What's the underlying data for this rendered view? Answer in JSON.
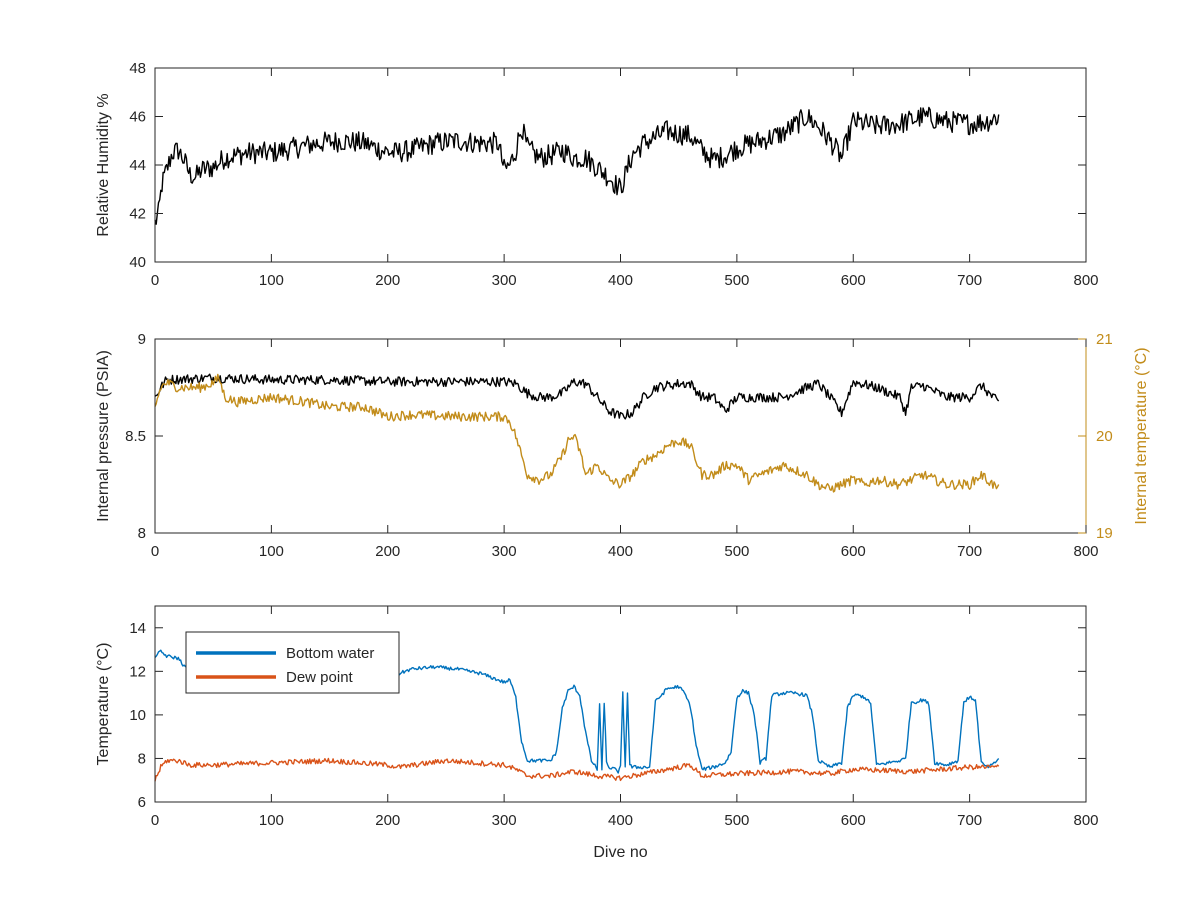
{
  "chart_data": [
    {
      "type": "line",
      "title": "",
      "xlabel": "",
      "ylabel": "Relative Humidity %",
      "xlim": [
        0,
        800
      ],
      "ylim": [
        40,
        48
      ],
      "xticks": [
        0,
        100,
        200,
        300,
        400,
        500,
        600,
        700,
        800
      ],
      "yticks": [
        40,
        42,
        44,
        46,
        48
      ],
      "series": [
        {
          "color": "#000000",
          "axis": "left",
          "noise": 0.45,
          "x": [
            0,
            3,
            6,
            10,
            15,
            20,
            25,
            30,
            35,
            40,
            50,
            60,
            70,
            80,
            90,
            100,
            120,
            140,
            160,
            180,
            195,
            205,
            220,
            240,
            260,
            280,
            295,
            300,
            305,
            310,
            315,
            320,
            330,
            340,
            350,
            360,
            370,
            380,
            390,
            400,
            410,
            420,
            440,
            460,
            470,
            480,
            490,
            500,
            520,
            540,
            560,
            570,
            580,
            590,
            600,
            620,
            640,
            660,
            680,
            700,
            715,
            725
          ],
          "y": [
            41.6,
            42.0,
            43.2,
            43.8,
            44.5,
            44.6,
            44.2,
            43.6,
            43.5,
            43.8,
            43.9,
            44.3,
            44.4,
            44.5,
            44.5,
            44.5,
            44.7,
            44.9,
            45.0,
            44.9,
            44.6,
            44.5,
            44.6,
            44.9,
            45.0,
            44.9,
            44.9,
            43.8,
            44.0,
            44.6,
            45.6,
            44.7,
            44.3,
            44.4,
            44.6,
            44.3,
            44.3,
            43.9,
            43.5,
            43.0,
            44.4,
            44.9,
            45.4,
            45.2,
            44.6,
            44.2,
            44.4,
            44.7,
            45.0,
            45.3,
            46.0,
            45.6,
            45.0,
            44.3,
            45.8,
            45.6,
            45.7,
            46.0,
            45.8,
            45.7,
            45.8,
            46.0
          ]
        }
      ]
    },
    {
      "type": "line",
      "title": "",
      "xlabel": "",
      "ylabel": "Internal pressure (PSIA)",
      "ylabel_right": "Internal temperature (°C)",
      "xlim": [
        0,
        800
      ],
      "ylim": [
        8,
        9
      ],
      "ylim_right": [
        19,
        21
      ],
      "xticks": [
        0,
        100,
        200,
        300,
        400,
        500,
        600,
        700,
        800
      ],
      "yticks": [
        8,
        8.5,
        9
      ],
      "yticks_right": [
        19,
        20,
        21
      ],
      "series": [
        {
          "color": "#000000",
          "axis": "left",
          "noise": 0.025,
          "x": [
            0,
            5,
            10,
            50,
            100,
            150,
            200,
            250,
            290,
            300,
            310,
            320,
            330,
            340,
            350,
            360,
            370,
            380,
            390,
            400,
            410,
            420,
            430,
            440,
            450,
            460,
            470,
            480,
            490,
            500,
            520,
            540,
            560,
            570,
            580,
            590,
            600,
            620,
            640,
            645,
            650,
            660,
            680,
            700,
            710,
            720,
            725
          ],
          "y": [
            8.7,
            8.75,
            8.79,
            8.8,
            8.79,
            8.79,
            8.78,
            8.78,
            8.78,
            8.78,
            8.77,
            8.72,
            8.7,
            8.7,
            8.72,
            8.78,
            8.77,
            8.7,
            8.63,
            8.6,
            8.62,
            8.7,
            8.75,
            8.76,
            8.77,
            8.77,
            8.7,
            8.7,
            8.63,
            8.7,
            8.7,
            8.7,
            8.75,
            8.77,
            8.7,
            8.62,
            8.78,
            8.75,
            8.7,
            8.62,
            8.75,
            8.76,
            8.7,
            8.7,
            8.76,
            8.7,
            8.67
          ]
        },
        {
          "color": "#C28C1A",
          "axis": "right",
          "noise": 0.05,
          "x": [
            0,
            5,
            10,
            20,
            30,
            40,
            50,
            55,
            60,
            70,
            100,
            130,
            150,
            160,
            180,
            200,
            220,
            260,
            290,
            300,
            305,
            310,
            315,
            320,
            330,
            340,
            350,
            355,
            360,
            365,
            370,
            380,
            390,
            400,
            410,
            420,
            430,
            440,
            450,
            460,
            470,
            480,
            490,
            500,
            510,
            520,
            530,
            540,
            560,
            570,
            580,
            600,
            610,
            620,
            640,
            660,
            680,
            700,
            710,
            715,
            720,
            725
          ],
          "y": [
            20.3,
            20.5,
            20.55,
            20.5,
            20.5,
            20.5,
            20.55,
            20.6,
            20.4,
            20.35,
            20.4,
            20.35,
            20.3,
            20.3,
            20.3,
            20.2,
            20.22,
            20.2,
            20.2,
            20.2,
            20.15,
            20.0,
            19.8,
            19.6,
            19.55,
            19.6,
            19.8,
            19.95,
            20.0,
            19.85,
            19.6,
            19.7,
            19.55,
            19.5,
            19.6,
            19.75,
            19.8,
            19.9,
            19.95,
            19.9,
            19.6,
            19.6,
            19.7,
            19.7,
            19.55,
            19.6,
            19.65,
            19.7,
            19.6,
            19.5,
            19.45,
            19.55,
            19.5,
            19.55,
            19.5,
            19.6,
            19.5,
            19.5,
            19.6,
            19.55,
            19.5,
            19.45
          ]
        }
      ]
    },
    {
      "type": "line",
      "title": "",
      "xlabel": "Dive no",
      "ylabel": "Temperature (°C)",
      "xlim": [
        0,
        800
      ],
      "ylim": [
        6,
        15
      ],
      "xticks": [
        0,
        100,
        200,
        300,
        400,
        500,
        600,
        700,
        800
      ],
      "yticks": [
        6,
        8,
        10,
        12,
        14
      ],
      "legend": "top-left",
      "series": [
        {
          "name": "Bottom water",
          "color": "#0072BD",
          "axis": "left",
          "noise": 0.08,
          "x": [
            0,
            5,
            10,
            20,
            30,
            40,
            50,
            70,
            100,
            130,
            150,
            160,
            180,
            195,
            200,
            205,
            210,
            220,
            240,
            260,
            280,
            290,
            300,
            305,
            310,
            315,
            320,
            330,
            340,
            345,
            350,
            355,
            360,
            365,
            370,
            375,
            380,
            382,
            384,
            386,
            388,
            390,
            395,
            398,
            400,
            402,
            404,
            406,
            408,
            410,
            420,
            425,
            430,
            440,
            450,
            455,
            460,
            465,
            470,
            480,
            485,
            490,
            495,
            500,
            505,
            510,
            515,
            520,
            525,
            530,
            540,
            550,
            560,
            565,
            570,
            580,
            585,
            590,
            595,
            600,
            605,
            610,
            615,
            620,
            630,
            640,
            645,
            650,
            655,
            660,
            665,
            670,
            680,
            690,
            695,
            700,
            705,
            710,
            715,
            720,
            725
          ],
          "y": [
            12.7,
            12.9,
            12.7,
            12.6,
            11.9,
            11.7,
            11.6,
            11.6,
            11.6,
            11.6,
            11.6,
            11.7,
            11.6,
            11.7,
            11.9,
            11.6,
            11.9,
            12.1,
            12.2,
            12.1,
            11.9,
            11.7,
            11.5,
            11.6,
            10.8,
            8.8,
            7.9,
            7.9,
            7.9,
            8.3,
            10.3,
            11.1,
            11.3,
            10.9,
            9.2,
            7.9,
            7.5,
            10.5,
            7.4,
            10.6,
            7.8,
            7.6,
            7.5,
            7.4,
            7.6,
            11.0,
            7.6,
            11.0,
            7.7,
            7.6,
            7.6,
            7.6,
            10.6,
            11.2,
            11.3,
            11.0,
            10.4,
            8.6,
            7.5,
            7.6,
            7.7,
            7.8,
            8.3,
            10.8,
            11.1,
            11.0,
            10.0,
            7.8,
            8.0,
            10.9,
            11.0,
            11.0,
            10.9,
            10.0,
            7.9,
            7.6,
            7.7,
            7.8,
            10.3,
            10.9,
            10.9,
            10.8,
            10.5,
            7.7,
            7.8,
            7.9,
            8.0,
            10.6,
            10.6,
            10.7,
            10.5,
            7.8,
            7.7,
            7.9,
            10.6,
            10.8,
            10.7,
            7.8,
            7.6,
            7.7,
            8.0
          ]
        },
        {
          "name": "Dew point",
          "color": "#D95319",
          "axis": "left",
          "noise": 0.12,
          "x": [
            0,
            5,
            10,
            20,
            30,
            50,
            100,
            150,
            200,
            210,
            250,
            300,
            310,
            320,
            340,
            360,
            380,
            400,
            420,
            450,
            460,
            470,
            500,
            550,
            580,
            600,
            650,
            700,
            725
          ],
          "y": [
            7.0,
            7.6,
            7.9,
            7.9,
            7.7,
            7.7,
            7.8,
            7.9,
            7.7,
            7.6,
            7.9,
            7.7,
            7.5,
            7.2,
            7.2,
            7.4,
            7.2,
            7.1,
            7.3,
            7.6,
            7.7,
            7.2,
            7.3,
            7.4,
            7.3,
            7.5,
            7.4,
            7.6,
            7.6
          ]
        }
      ]
    }
  ]
}
